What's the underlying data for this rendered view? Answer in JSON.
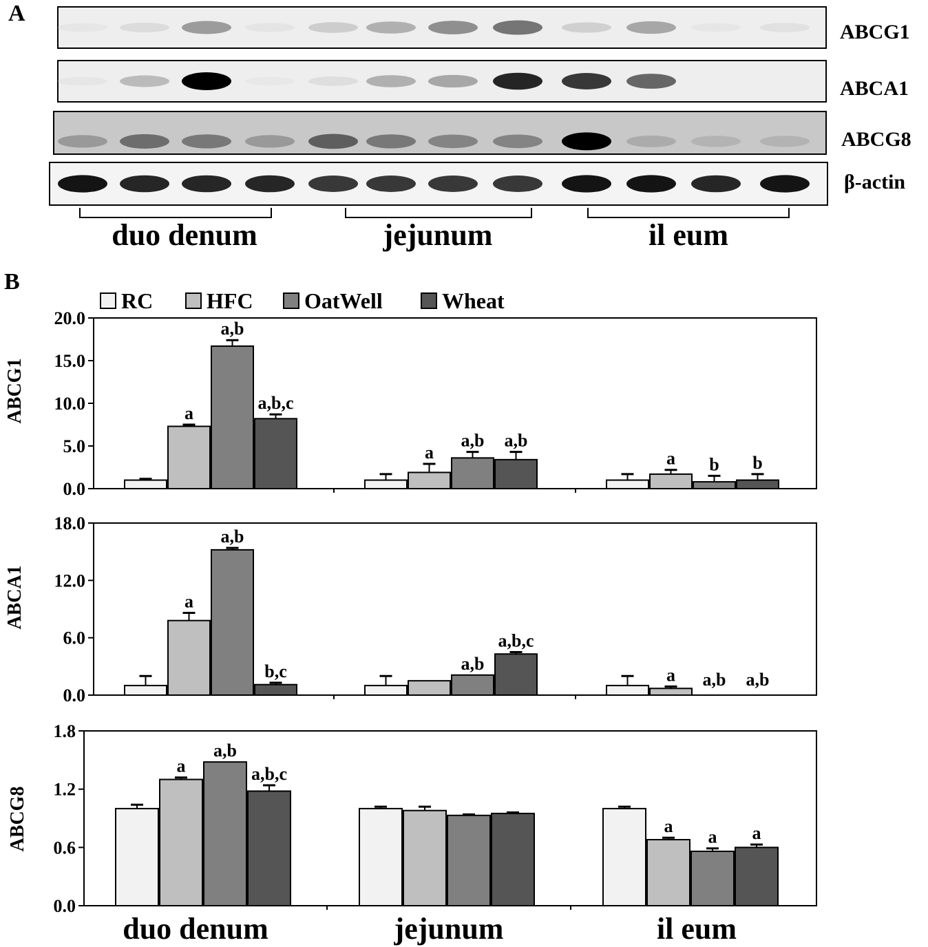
{
  "panels": {
    "a": "A",
    "b": "B"
  },
  "blot": {
    "protein_labels": [
      "ABCG1",
      "ABCA1",
      "ABCG8",
      "β-actin"
    ],
    "region_labels": [
      "duo denum",
      "jejunum",
      "il eum"
    ],
    "band_intensity": [
      [
        0.05,
        0.15,
        0.5,
        0.08,
        0.25,
        0.4,
        0.55,
        0.65,
        0.22,
        0.45,
        0.05,
        0.1
      ],
      [
        0.05,
        0.35,
        1.0,
        0.03,
        0.12,
        0.4,
        0.45,
        0.9,
        0.85,
        0.7,
        0.0,
        0.0
      ],
      [
        0.45,
        0.65,
        0.6,
        0.45,
        0.7,
        0.6,
        0.55,
        0.55,
        1.0,
        0.35,
        0.3,
        0.3
      ],
      [
        0.95,
        0.9,
        0.9,
        0.9,
        0.85,
        0.85,
        0.85,
        0.85,
        0.95,
        0.95,
        0.9,
        0.95
      ]
    ]
  },
  "chart_data": {
    "type": "bar",
    "categories": [
      "duo denum",
      "jejunum",
      "il eum"
    ],
    "legend": [
      "RC",
      "HFC",
      "OatWell",
      "Wheat"
    ],
    "colors": [
      "#f2f2f2",
      "#bfbfbf",
      "#808080",
      "#555555"
    ],
    "subplots": [
      {
        "ylabel": "ABCG1",
        "ylim": [
          0,
          20
        ],
        "yticks": [
          "0.0",
          "5.0",
          "10.0",
          "15.0",
          "20.0"
        ],
        "series": [
          {
            "name": "RC",
            "values": [
              1.0,
              1.0,
              1.0
            ],
            "errors": [
              0.15,
              0.7,
              0.7
            ]
          },
          {
            "name": "HFC",
            "values": [
              7.3,
              1.9,
              1.7
            ],
            "errors": [
              0.2,
              1.0,
              0.5
            ]
          },
          {
            "name": "OatWell",
            "values": [
              16.7,
              3.6,
              0.8
            ],
            "errors": [
              0.7,
              0.7,
              0.7
            ]
          },
          {
            "name": "Wheat",
            "values": [
              8.2,
              3.4,
              1.0
            ],
            "errors": [
              0.5,
              0.9,
              0.7
            ]
          }
        ],
        "annotations": [
          [
            "",
            "a",
            "a,b",
            "a,b,c"
          ],
          [
            "",
            "a",
            "a,b",
            "a,b"
          ],
          [
            "",
            "a",
            "b",
            "b"
          ]
        ]
      },
      {
        "ylabel": "ABCA1",
        "ylim": [
          0,
          18
        ],
        "yticks": [
          "0.0",
          "6.0",
          "12.0",
          "18.0"
        ],
        "series": [
          {
            "name": "RC",
            "values": [
              1.0,
              1.0,
              1.0
            ],
            "errors": [
              1.0,
              1.0,
              1.0
            ]
          },
          {
            "name": "HFC",
            "values": [
              7.8,
              1.5,
              0.7
            ],
            "errors": [
              0.8,
              0.0,
              0.2
            ]
          },
          {
            "name": "OatWell",
            "values": [
              15.2,
              2.1,
              0.0
            ],
            "errors": [
              0.2,
              0.0,
              0.0
            ]
          },
          {
            "name": "Wheat",
            "values": [
              1.1,
              4.3,
              0.0
            ],
            "errors": [
              0.2,
              0.2,
              0.0
            ]
          }
        ],
        "annotations": [
          [
            "",
            "a",
            "a,b",
            "b,c"
          ],
          [
            "",
            "",
            "a,b",
            "a,b,c"
          ],
          [
            "",
            "a",
            "a,b",
            "a,b"
          ]
        ]
      },
      {
        "ylabel": "ABCG8",
        "ylim": [
          0,
          1.8
        ],
        "yticks": [
          "0.0",
          "0.6",
          "1.2",
          "1.8"
        ],
        "series": [
          {
            "name": "RC",
            "values": [
              1.0,
              1.0,
              1.0
            ],
            "errors": [
              0.04,
              0.02,
              0.02
            ]
          },
          {
            "name": "HFC",
            "values": [
              1.3,
              0.98,
              0.68
            ],
            "errors": [
              0.02,
              0.04,
              0.02
            ]
          },
          {
            "name": "OatWell",
            "values": [
              1.48,
              0.93,
              0.56
            ],
            "errors": [
              0.0,
              0.01,
              0.03
            ]
          },
          {
            "name": "Wheat",
            "values": [
              1.18,
              0.95,
              0.6
            ],
            "errors": [
              0.06,
              0.01,
              0.03
            ]
          }
        ],
        "annotations": [
          [
            "",
            "a",
            "a,b",
            "a,b,c"
          ],
          [
            "",
            "",
            "",
            ""
          ],
          [
            "",
            "a",
            "a",
            "a"
          ]
        ]
      }
    ]
  }
}
